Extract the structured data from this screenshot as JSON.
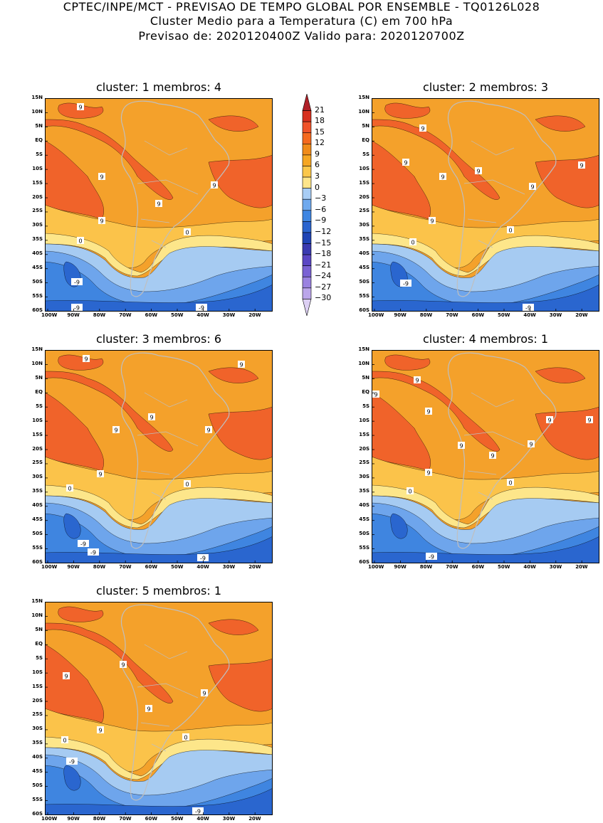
{
  "header": {
    "line1": "CPTEC/INPE/MCT - PREVISAO DE TEMPO GLOBAL POR ENSEMBLE - TQ0126L028",
    "line2": "Cluster Medio para a Temperatura (C) em 700 hPa",
    "line3": "Previsao de: 2020120400Z   Valido para: 2020120700Z"
  },
  "panels": [
    {
      "title": "cluster: 1   membros: 4"
    },
    {
      "title": "cluster: 2   membros: 3"
    },
    {
      "title": "cluster: 3   membros: 6"
    },
    {
      "title": "cluster: 4   membros: 1"
    },
    {
      "title": "cluster: 5   membros: 1"
    }
  ],
  "lat_ticks": [
    "15N",
    "10N",
    "5N",
    "EQ",
    "5S",
    "10S",
    "15S",
    "20S",
    "25S",
    "30S",
    "35S",
    "40S",
    "45S",
    "50S",
    "55S",
    "60S"
  ],
  "lon_ticks": [
    "100W",
    "90W",
    "80W",
    "70W",
    "60W",
    "50W",
    "40W",
    "30W",
    "20W"
  ],
  "colorbar": {
    "labels": [
      "21",
      "18",
      "15",
      "12",
      "9",
      "6",
      "3",
      "0",
      "-3",
      "-6",
      "-9",
      "-12",
      "-15",
      "-18",
      "-21",
      "-24",
      "-27",
      "-30"
    ],
    "colors": [
      "#b02028",
      "#d7301f",
      "#f0532a",
      "#f56a1f",
      "#f08b1a",
      "#f5a623",
      "#fbc74a",
      "#fde58a",
      "#a8cdf5",
      "#6fa9ee",
      "#3f86e2",
      "#2a64cf",
      "#1f44b5",
      "#3a3ab0",
      "#5a46c4",
      "#7a62d4",
      "#9a82e0",
      "#bba6ea",
      "#ddd0f4"
    ]
  },
  "contour_labels": [
    "9",
    "0",
    "-9"
  ],
  "colors": {
    "warm_dark": "#f0632a",
    "warm": "#f4a12b",
    "warm_light": "#fbc34a",
    "pale": "#fde68a",
    "cold_light": "#a6cbf2",
    "cold": "#6ea5ec",
    "cold_mid": "#3f85e0",
    "cold_dark": "#2a66cf",
    "land": "#bfbfbf"
  }
}
